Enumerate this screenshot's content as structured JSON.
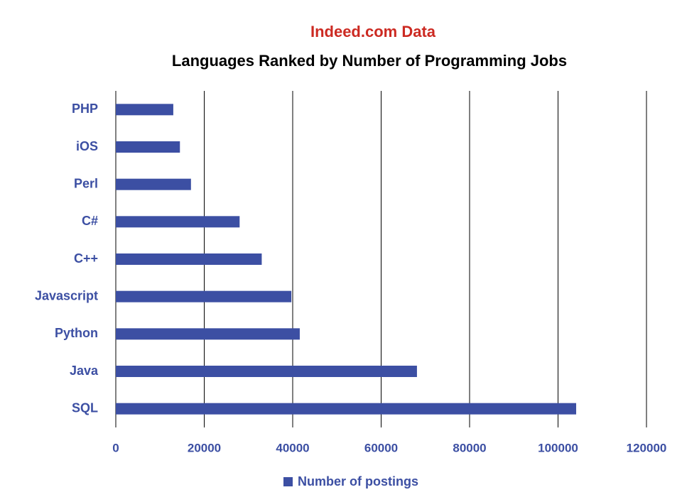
{
  "chart_data": {
    "type": "barh",
    "title": "Indeed.com Data",
    "subtitle": "Languages Ranked by Number of Programming Jobs",
    "categories": [
      "PHP",
      "iOS",
      "Perl",
      "C#",
      "C++",
      "Javascript",
      "Python",
      "Java",
      "SQL"
    ],
    "series": [
      {
        "name": "Number of postings",
        "color": "#3c4fa3",
        "values": [
          13000,
          14500,
          17000,
          28000,
          33000,
          39700,
          41600,
          68100,
          104100
        ]
      }
    ],
    "xlim": [
      0,
      120000
    ],
    "xticks": [
      0,
      20000,
      40000,
      60000,
      80000,
      100000,
      120000
    ],
    "grid": true,
    "legend": "bottom"
  }
}
